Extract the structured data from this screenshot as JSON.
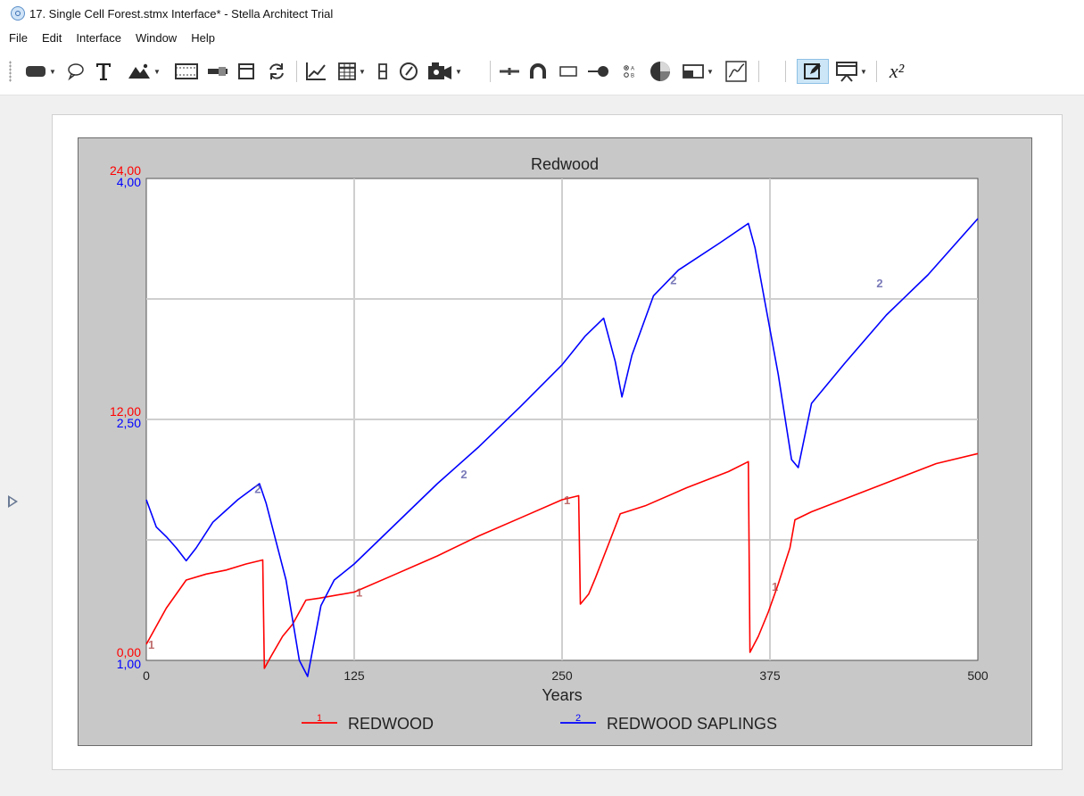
{
  "window": {
    "title": "17. Single Cell Forest.stmx Interface* - Stella Architect Trial"
  },
  "menu": [
    "File",
    "Edit",
    "Interface",
    "Window",
    "Help"
  ],
  "toolbar": {
    "tools": [
      "stock-icon",
      "speech-bubble-icon",
      "text-icon",
      "image-icon",
      "video-frame-icon",
      "slider-icon",
      "frame-icon",
      "refresh-icon",
      "graph-icon",
      "table-icon",
      "numeric-display-icon",
      "gauge-icon",
      "camera-icon",
      "connector-icon",
      "arc-icon",
      "switch-icon",
      "knob-toggle-icon",
      "radio-options-icon",
      "pie-icon",
      "list-input-icon",
      "graphical-input-icon",
      "edit-icon",
      "presentation-icon",
      "equation-icon"
    ],
    "equation_label": "x²"
  },
  "chart_data": {
    "type": "line",
    "title": "Redwood",
    "xlabel": "Years",
    "xlim": [
      0,
      500
    ],
    "x_ticks": [
      "0",
      "125",
      "250",
      "375",
      "500"
    ],
    "left_axis_1": {
      "labels": [
        "24,00",
        "12,00",
        "0,00"
      ],
      "color": "#ff0000",
      "ylim": [
        0,
        24
      ]
    },
    "left_axis_2": {
      "labels": [
        "4,00",
        "2,50",
        "1,00"
      ],
      "color": "#0000ff",
      "ylim": [
        1,
        4
      ]
    },
    "series": [
      {
        "id": "1",
        "name": "REDWOOD",
        "color": "#ff0000",
        "axis": 1,
        "x": [
          0,
          12,
          24,
          36,
          48,
          60,
          70,
          71,
          75,
          82,
          88,
          96,
          104,
          125,
          150,
          175,
          200,
          225,
          250,
          260,
          261,
          266,
          270,
          278,
          285,
          300,
          325,
          350,
          362,
          363,
          368,
          374,
          380,
          387,
          390,
          400,
          425,
          450,
          475,
          500
        ],
        "values": [
          0.8,
          2.6,
          4.0,
          4.3,
          4.5,
          4.8,
          5.0,
          -0.4,
          0.2,
          1.2,
          1.8,
          3.0,
          3.1,
          3.4,
          4.3,
          5.2,
          6.2,
          7.1,
          8.0,
          8.2,
          2.8,
          3.3,
          4.1,
          5.8,
          7.3,
          7.7,
          8.6,
          9.4,
          9.9,
          0.4,
          1.2,
          2.4,
          3.8,
          5.6,
          7.0,
          7.4,
          8.2,
          9.0,
          9.8,
          10.3
        ]
      },
      {
        "id": "2",
        "name": "REDWOOD SAPLINGS",
        "color": "#0000ff",
        "axis": 2,
        "x": [
          0,
          6,
          12,
          18,
          24,
          30,
          40,
          55,
          68,
          72,
          84,
          92,
          97,
          105,
          113,
          125,
          150,
          175,
          200,
          225,
          250,
          264,
          275,
          282,
          286,
          292,
          305,
          320,
          345,
          362,
          366,
          372,
          380,
          388,
          392,
          400,
          420,
          445,
          470,
          500
        ],
        "values": [
          2.0,
          1.83,
          1.77,
          1.7,
          1.62,
          1.7,
          1.86,
          2.0,
          2.1,
          1.98,
          1.5,
          1.0,
          0.9,
          1.34,
          1.5,
          1.6,
          1.85,
          2.1,
          2.33,
          2.58,
          2.84,
          3.02,
          3.13,
          2.86,
          2.64,
          2.9,
          3.27,
          3.43,
          3.6,
          3.72,
          3.57,
          3.23,
          2.78,
          2.25,
          2.2,
          2.6,
          2.85,
          3.15,
          3.4,
          3.75
        ]
      }
    ],
    "series_markers": {
      "1": [
        [
          3,
          0.8
        ],
        [
          128,
          3.4
        ],
        [
          253,
          8.0
        ],
        [
          378,
          3.7
        ]
      ],
      "2": [
        [
          67,
          2.07
        ],
        [
          191,
          2.16
        ],
        [
          317,
          3.37
        ],
        [
          441,
          3.35
        ]
      ]
    },
    "legend": [
      {
        "id": "1",
        "label": "REDWOOD",
        "color": "#ff0000"
      },
      {
        "id": "2",
        "label": "REDWOOD SAPLINGS",
        "color": "#0000ff"
      }
    ],
    "grid": true,
    "legend_position": "bottom"
  }
}
